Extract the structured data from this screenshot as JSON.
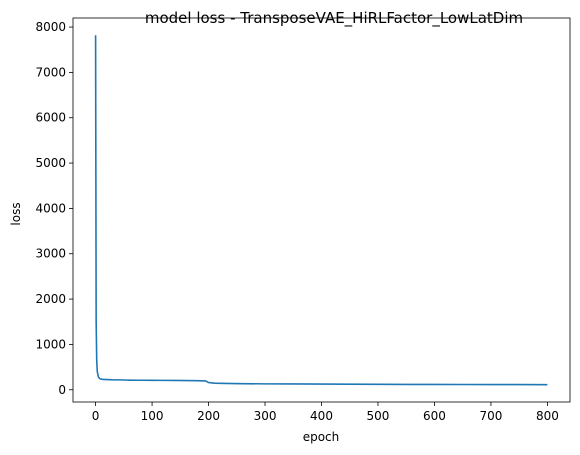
{
  "chart_data": {
    "type": "line",
    "title": "model loss - TransposeVAE_HiRLFactor_LowLatDim",
    "xlabel": "epoch",
    "ylabel": "loss",
    "xlim": [
      -40,
      840
    ],
    "ylim": [
      -270,
      8200
    ],
    "xticks": [
      0,
      100,
      200,
      300,
      400,
      500,
      600,
      700,
      800
    ],
    "yticks": [
      0,
      1000,
      2000,
      3000,
      4000,
      5000,
      6000,
      7000,
      8000
    ],
    "grid": false,
    "series": [
      {
        "color": "#1f77b4",
        "x": [
          0,
          1,
          2,
          3,
          5,
          8,
          12,
          20,
          30,
          40,
          50,
          60,
          80,
          100,
          120,
          140,
          160,
          180,
          195,
          200,
          210,
          230,
          260,
          300,
          350,
          400,
          450,
          500,
          550,
          600,
          650,
          700,
          750,
          800
        ],
        "y": [
          7820,
          1500,
          650,
          400,
          280,
          240,
          230,
          225,
          220,
          218,
          215,
          212,
          210,
          208,
          207,
          205,
          203,
          200,
          195,
          160,
          145,
          140,
          135,
          130,
          128,
          125,
          122,
          120,
          118,
          117,
          116,
          115,
          114,
          113
        ]
      }
    ]
  }
}
